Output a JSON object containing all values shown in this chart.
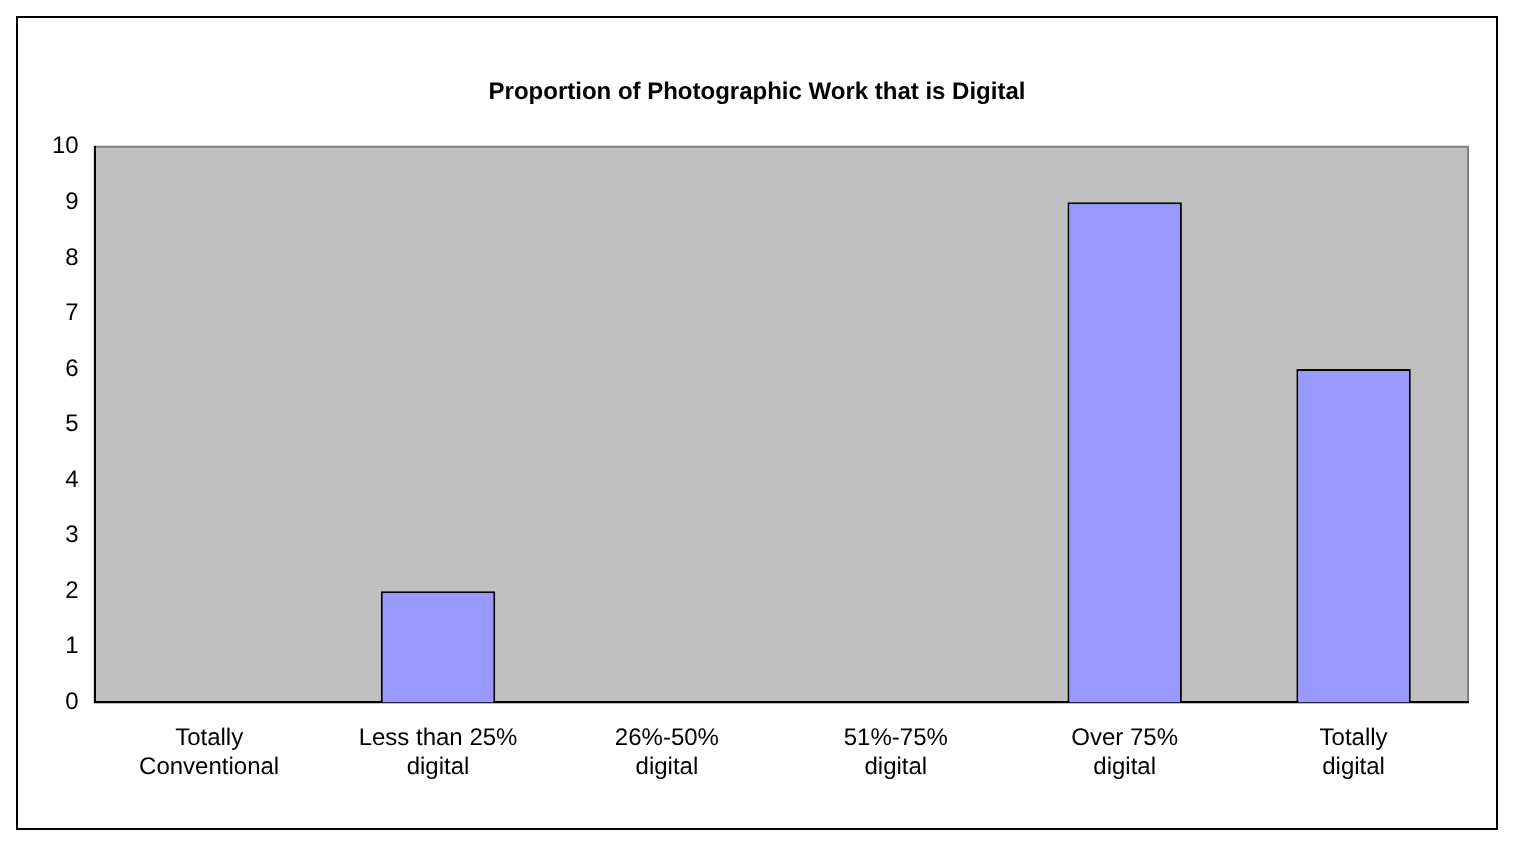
{
  "chart_data": {
    "type": "bar",
    "title": "Proportion of Photographic Work that is Digital",
    "categories": [
      "Totally Conventional",
      "Less than 25% digital",
      "26%-50% digital",
      "51%-75% digital",
      "Over 75% digital",
      "Totally digital"
    ],
    "values": [
      0,
      2,
      0,
      0,
      9,
      6
    ],
    "color": "#9999ff",
    "ylim": [
      0,
      10
    ],
    "yticks": [
      0,
      1,
      2,
      3,
      4,
      5,
      6,
      7,
      8,
      9,
      10
    ],
    "grid": false,
    "legend": false
  }
}
